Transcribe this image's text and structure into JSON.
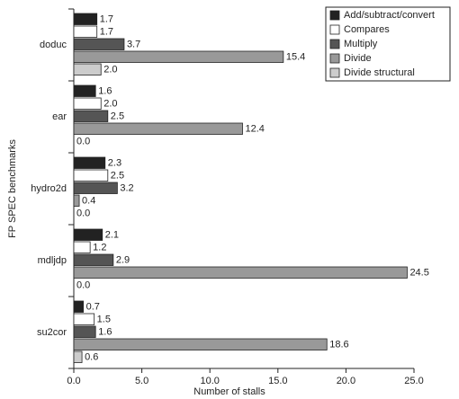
{
  "chart_data": {
    "type": "hbar",
    "x_label": "Number of stalls",
    "y_label": "FP SPEC benchmarks",
    "categories": [
      "doduc",
      "ear",
      "hydro2d",
      "mdljdp",
      "su2cor"
    ],
    "series": [
      {
        "name": "Add/subtract/convert",
        "color": "#222222",
        "values": [
          1.7,
          1.6,
          2.3,
          2.1,
          0.7
        ],
        "value_labels": [
          "1.7",
          "1.6",
          "2.3",
          "2.1",
          "0.7"
        ]
      },
      {
        "name": "Compares",
        "color": "#ffffff",
        "values": [
          1.7,
          2.0,
          2.5,
          1.2,
          1.5
        ],
        "value_labels": [
          "1.7",
          "2.0",
          "2.5",
          "1.2",
          "1.5"
        ]
      },
      {
        "name": "Multiply",
        "color": "#555555",
        "values": [
          3.7,
          2.5,
          3.2,
          2.9,
          1.6
        ],
        "value_labels": [
          "3.7",
          "2.5",
          "3.2",
          "2.9",
          "1.6"
        ]
      },
      {
        "name": "Divide",
        "color": "#999999",
        "values": [
          15.4,
          12.4,
          0.4,
          24.5,
          18.6
        ],
        "value_labels": [
          "15.4",
          "12.4",
          "0.4",
          "24.5",
          "18.6"
        ]
      },
      {
        "name": "Divide structural",
        "color": "#cccccc",
        "values": [
          2.0,
          0.0,
          0.0,
          0.0,
          0.6
        ],
        "value_labels": [
          "2.0",
          "0.0",
          "0.0",
          "0.0",
          "0.6"
        ]
      }
    ],
    "xlim": [
      0,
      25
    ],
    "xticks": [
      {
        "value": 0,
        "label": "0.0"
      },
      {
        "value": 5,
        "label": "5.0"
      },
      {
        "value": 10,
        "label": "10.0"
      },
      {
        "value": 15,
        "label": "15.0"
      },
      {
        "value": 20,
        "label": "20.0"
      },
      {
        "value": 25,
        "label": "25.0"
      }
    ],
    "legend": "top-right"
  }
}
